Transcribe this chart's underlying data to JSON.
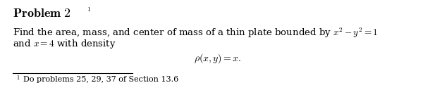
{
  "title_text": "Problem 2 ",
  "title_super": "1",
  "body_line1": "Find the area, mass, and center of mass of a thin plate bounded by $x^2 - y^2 = 1$",
  "body_line2": "and $x = 4$ with density",
  "formula": "$\\rho(x, y) = x.$",
  "footnote_num": "1",
  "footnote_text": "Do problems 25, 29, 37 of Section 13.6",
  "bg_color": "#ffffff",
  "text_color": "#000000",
  "title_fontsize": 13,
  "body_fontsize": 9.5,
  "formula_fontsize": 10,
  "footnote_fontsize": 8,
  "fig_width": 6.17,
  "fig_height": 1.45,
  "dpi": 100
}
